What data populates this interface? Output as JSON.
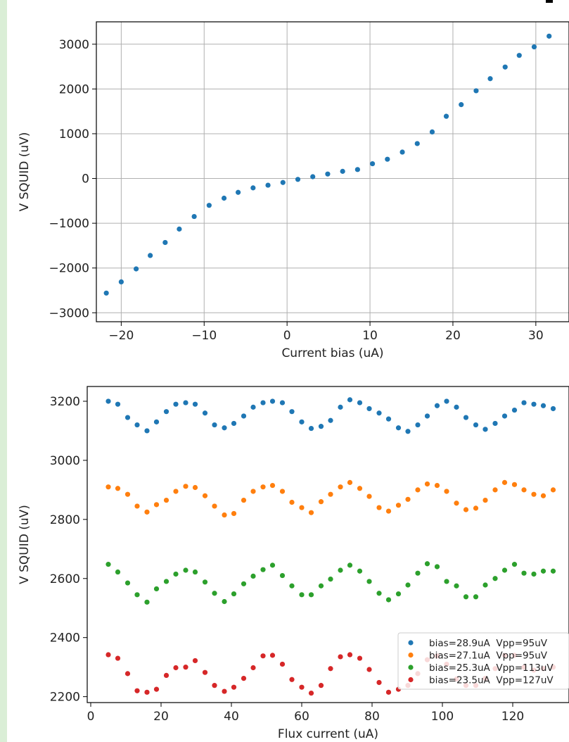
{
  "chart_data": [
    {
      "type": "scatter",
      "xlabel": "Current bias (uA)",
      "ylabel": "V SQUID (uV)",
      "xlim": [
        -23,
        34
      ],
      "ylim": [
        -3200,
        3500
      ],
      "xticks": [
        -20,
        -10,
        0,
        10,
        20,
        30
      ],
      "xtick_labels": [
        "−20",
        "−10",
        "0",
        "10",
        "20",
        "30"
      ],
      "yticks": [
        -3000,
        -2000,
        -1000,
        0,
        1000,
        2000,
        3000
      ],
      "ytick_labels": [
        "−3000",
        "−2000",
        "−1000",
        "0",
        "1000",
        "2000",
        "3000"
      ],
      "grid": true,
      "series": [
        {
          "color": "#1f77b4",
          "x": [
            -21.8,
            -20.0,
            -18.2,
            -16.5,
            -14.7,
            -13.0,
            -11.2,
            -9.4,
            -7.6,
            -5.9,
            -4.1,
            -2.3,
            -0.5,
            1.3,
            3.1,
            4.9,
            6.7,
            8.5,
            10.3,
            12.1,
            13.9,
            15.7,
            17.5,
            19.2,
            21.0,
            22.8,
            24.5,
            26.3,
            28.0,
            29.8,
            31.6
          ],
          "y": [
            -2560,
            -2310,
            -2020,
            -1720,
            -1430,
            -1130,
            -850,
            -600,
            -440,
            -310,
            -210,
            -150,
            -90,
            -20,
            40,
            100,
            160,
            200,
            330,
            430,
            590,
            780,
            1040,
            1390,
            1650,
            1960,
            2230,
            2490,
            2750,
            2940,
            3180
          ]
        }
      ]
    },
    {
      "type": "scatter",
      "xlabel": "Flux current (uA)",
      "ylabel": "V SQUID (uV)",
      "xlim": [
        -1,
        136
      ],
      "ylim": [
        2180,
        3250
      ],
      "xticks": [
        0,
        20,
        40,
        60,
        80,
        100,
        120
      ],
      "xtick_labels": [
        "0",
        "20",
        "40",
        "60",
        "80",
        "100",
        "120"
      ],
      "yticks": [
        2200,
        2400,
        2600,
        2800,
        3000,
        3200
      ],
      "ytick_labels": [
        "2200",
        "2400",
        "2600",
        "2800",
        "3000",
        "3200"
      ],
      "grid": false,
      "legend": "lower right",
      "x": [
        5,
        7.7,
        10.5,
        13.2,
        16,
        18.7,
        21.5,
        24.2,
        27,
        29.7,
        32.5,
        35.2,
        38,
        40.7,
        43.5,
        46.2,
        49,
        51.7,
        54.5,
        57.2,
        60,
        62.7,
        65.5,
        68.2,
        71,
        73.7,
        76.5,
        79.2,
        82,
        84.7,
        87.5,
        90.2,
        93,
        95.7,
        98.5,
        101.2,
        104,
        106.7,
        109.5,
        112.2,
        115,
        117.7,
        120.5,
        123.2,
        126,
        128.7,
        131.5
      ],
      "series": [
        {
          "name": "bias=28.9uA  Vpp=95uV",
          "color": "#1f77b4",
          "values": [
            3200,
            3190,
            3145,
            3120,
            3100,
            3130,
            3165,
            3190,
            3195,
            3190,
            3160,
            3120,
            3110,
            3125,
            3150,
            3180,
            3195,
            3200,
            3195,
            3165,
            3130,
            3108,
            3115,
            3135,
            3180,
            3205,
            3195,
            3175,
            3160,
            3140,
            3110,
            3098,
            3120,
            3150,
            3185,
            3200,
            3180,
            3145,
            3120,
            3105,
            3125,
            3150,
            3170,
            3195,
            3190,
            3185,
            3175
          ]
        },
        {
          "name": "bias=27.1uA  Vpp=95uV",
          "color": "#ff7f0e",
          "values": [
            2910,
            2905,
            2885,
            2845,
            2825,
            2850,
            2865,
            2895,
            2912,
            2908,
            2880,
            2845,
            2815,
            2820,
            2865,
            2895,
            2910,
            2915,
            2895,
            2858,
            2840,
            2823,
            2860,
            2885,
            2910,
            2925,
            2905,
            2878,
            2840,
            2828,
            2848,
            2868,
            2900,
            2920,
            2915,
            2895,
            2855,
            2833,
            2838,
            2865,
            2900,
            2925,
            2918,
            2900,
            2885,
            2880,
            2900
          ]
        },
        {
          "name": "bias=25.3uA  Vpp=113uV",
          "color": "#2ca02c",
          "values": [
            2648,
            2622,
            2585,
            2545,
            2520,
            2565,
            2590,
            2615,
            2628,
            2622,
            2588,
            2550,
            2522,
            2548,
            2582,
            2608,
            2630,
            2645,
            2610,
            2575,
            2545,
            2545,
            2575,
            2598,
            2628,
            2645,
            2625,
            2590,
            2550,
            2528,
            2548,
            2578,
            2618,
            2650,
            2640,
            2590,
            2575,
            2538,
            2538,
            2578,
            2600,
            2628,
            2648,
            2618,
            2615,
            2625,
            2625
          ]
        },
        {
          "name": "bias=23.5uA  Vpp=127uV",
          "color": "#d62728",
          "values": [
            2342,
            2330,
            2278,
            2220,
            2215,
            2225,
            2272,
            2298,
            2300,
            2322,
            2282,
            2238,
            2218,
            2232,
            2262,
            2298,
            2338,
            2340,
            2310,
            2258,
            2232,
            2212,
            2238,
            2295,
            2335,
            2342,
            2330,
            2292,
            2248,
            2215,
            2225,
            2238,
            2278,
            2325,
            2338,
            2310,
            2260,
            2238,
            2238,
            2262,
            2295,
            2340,
            2340,
            2300,
            2290,
            2295,
            2300
          ]
        }
      ]
    }
  ]
}
